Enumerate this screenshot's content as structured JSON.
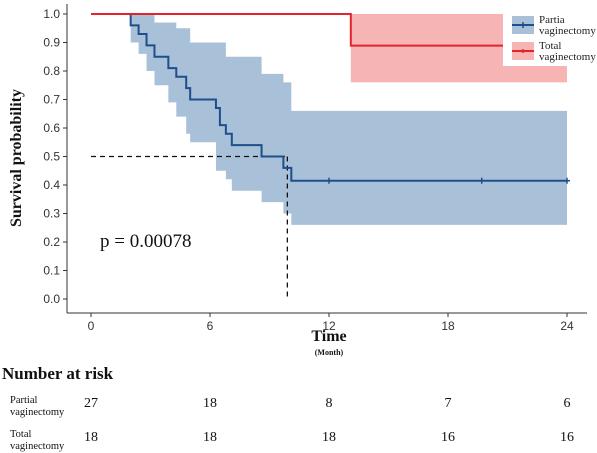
{
  "chart_data": {
    "type": "line",
    "xlabel": "Time",
    "xunit": "(Month)",
    "ylabel": "Survival probability",
    "xlim": [
      0,
      24
    ],
    "ylim": [
      0,
      1
    ],
    "xticks": [
      0,
      6,
      12,
      18,
      24
    ],
    "yticks": [
      "0.0",
      "0.1",
      "0.2",
      "0.3",
      "0.4",
      "0.5",
      "0.6",
      "0.7",
      "0.8",
      "0.9",
      "1.0"
    ],
    "p_value_text": "p = 0.00078",
    "median_survival": {
      "x": 9.9,
      "y": 0.5
    },
    "legend_position": "top-right",
    "series": [
      {
        "legend": [
          "Partia",
          "vaginectomy"
        ],
        "color": "#1f4e8c",
        "ci_color": "#a9c0d9",
        "steps": [
          [
            0,
            1.0
          ],
          [
            2.0,
            0.96
          ],
          [
            2.4,
            0.93
          ],
          [
            2.8,
            0.89
          ],
          [
            3.2,
            0.85
          ],
          [
            3.9,
            0.81
          ],
          [
            4.3,
            0.78
          ],
          [
            4.8,
            0.74
          ],
          [
            5.0,
            0.7
          ],
          [
            6.3,
            0.67
          ],
          [
            6.5,
            0.61
          ],
          [
            6.8,
            0.58
          ],
          [
            7.1,
            0.54
          ],
          [
            8.6,
            0.5
          ],
          [
            9.7,
            0.46
          ],
          [
            10.1,
            0.415
          ],
          [
            24,
            0.415
          ]
        ],
        "ci_upper": [
          [
            0,
            1.0
          ],
          [
            2.0,
            1.0
          ],
          [
            3.2,
            0.97
          ],
          [
            4.3,
            0.95
          ],
          [
            5.0,
            0.9
          ],
          [
            6.8,
            0.85
          ],
          [
            8.6,
            0.79
          ],
          [
            9.7,
            0.76
          ],
          [
            10.1,
            0.66
          ],
          [
            24,
            0.66
          ]
        ],
        "ci_lower": [
          [
            0,
            1.0
          ],
          [
            2.0,
            0.9
          ],
          [
            2.4,
            0.86
          ],
          [
            2.8,
            0.8
          ],
          [
            3.2,
            0.75
          ],
          [
            3.9,
            0.69
          ],
          [
            4.3,
            0.64
          ],
          [
            4.8,
            0.58
          ],
          [
            5.0,
            0.55
          ],
          [
            6.3,
            0.45
          ],
          [
            6.8,
            0.42
          ],
          [
            7.1,
            0.38
          ],
          [
            8.6,
            0.34
          ],
          [
            9.7,
            0.3
          ],
          [
            10.1,
            0.26
          ],
          [
            24,
            0.26
          ]
        ],
        "censor": [
          [
            12.0,
            0.415
          ],
          [
            19.7,
            0.415
          ],
          [
            24,
            0.415
          ]
        ]
      },
      {
        "legend": [
          "Total",
          "vaginectomy"
        ],
        "color": "#e3242b",
        "ci_color": "#f7b4b4",
        "steps": [
          [
            0,
            1.0
          ],
          [
            13.1,
            1.0
          ],
          [
            13.1,
            0.889
          ],
          [
            24,
            0.889
          ]
        ],
        "ci_upper": [
          [
            13.1,
            1.0
          ],
          [
            24,
            1.0
          ]
        ],
        "ci_lower": [
          [
            13.1,
            0.76
          ],
          [
            24,
            0.76
          ]
        ],
        "censor": []
      }
    ]
  },
  "risk_table": {
    "title": "Number at risk",
    "rows": [
      {
        "label": [
          "Partial",
          "vaginectomy"
        ],
        "values": [
          "27",
          "18",
          "8",
          "7",
          "6"
        ]
      },
      {
        "label": [
          "Total",
          "vaginectomy"
        ],
        "values": [
          "18",
          "18",
          "18",
          "16",
          "16"
        ]
      }
    ]
  }
}
